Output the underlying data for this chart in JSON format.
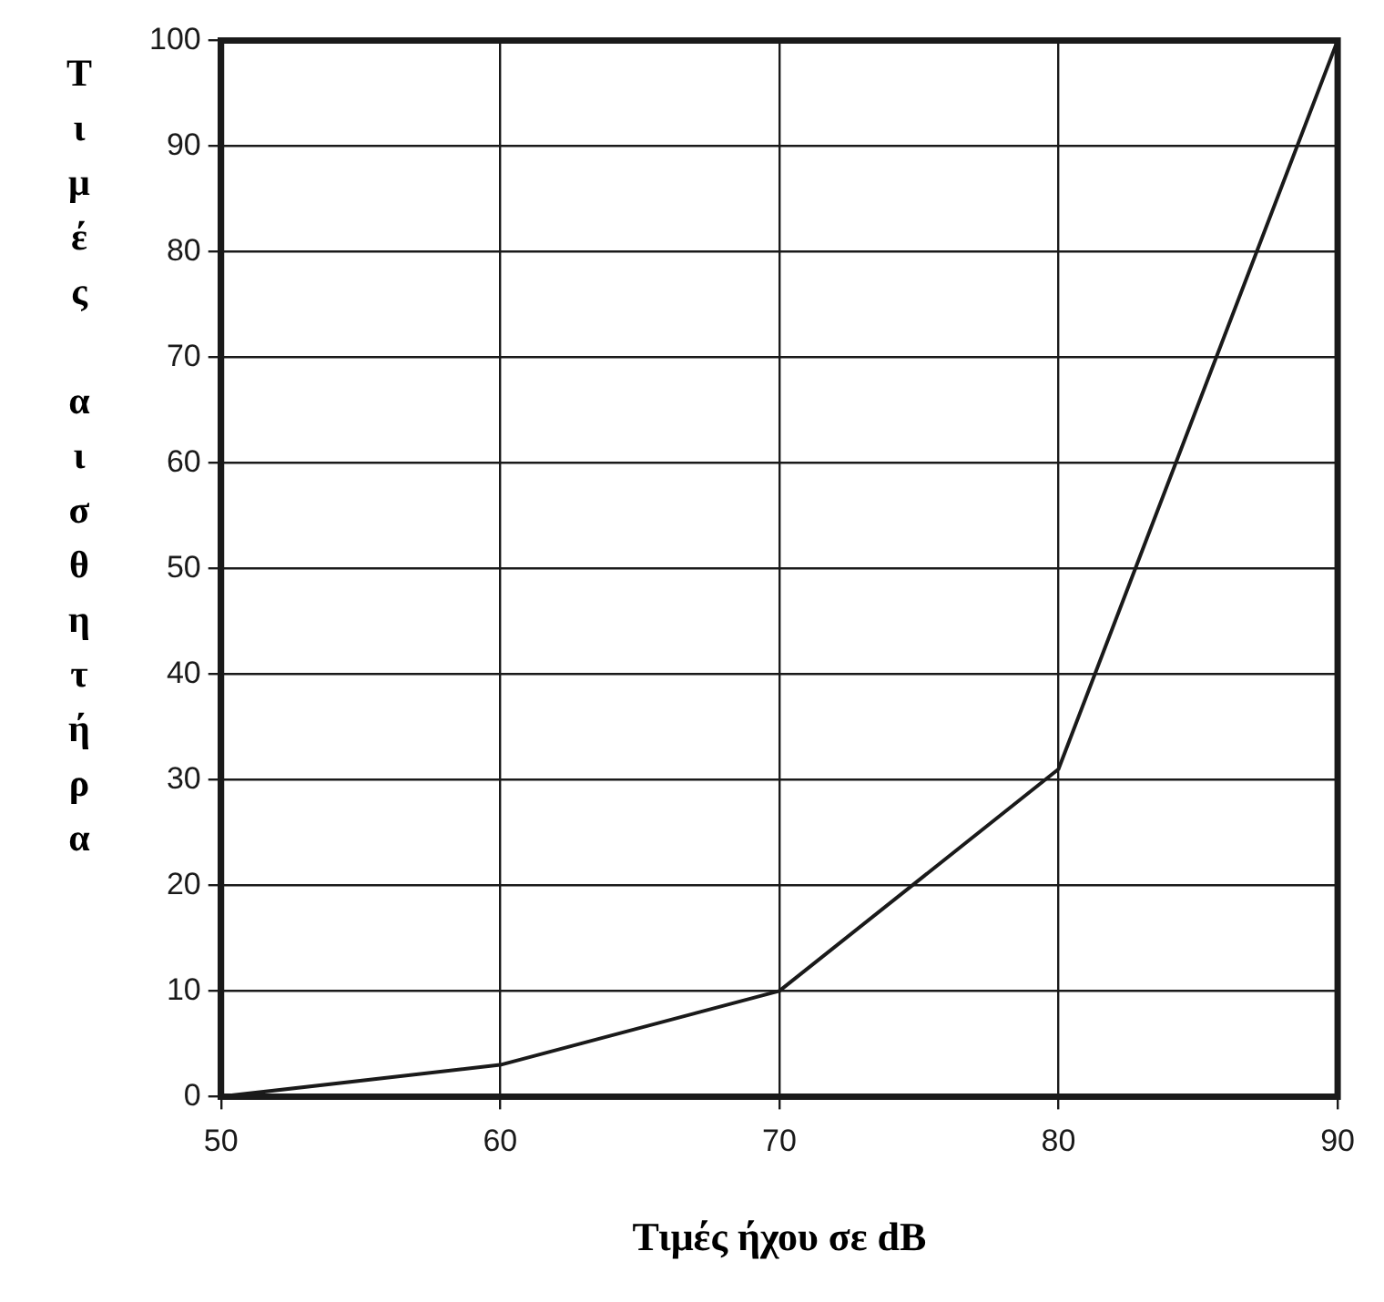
{
  "chart_data": {
    "type": "line",
    "xlabel": "Τιμές ήχου σε dB",
    "ylabel": "Τιμές αισθητήρα",
    "x": [
      50,
      60,
      70,
      80,
      90
    ],
    "series": [
      {
        "color": "#1a1a1a",
        "values": [
          0,
          3,
          10,
          31,
          100
        ]
      }
    ],
    "xlim": [
      50,
      90
    ],
    "xticks": [
      50,
      60,
      70,
      80,
      90
    ],
    "ylim": [
      0,
      100
    ],
    "yticks": [
      0,
      10,
      20,
      30,
      40,
      50,
      60,
      70,
      80,
      90,
      100
    ],
    "grid": true,
    "legend": false,
    "marker": "none",
    "line_style": "solid"
  }
}
